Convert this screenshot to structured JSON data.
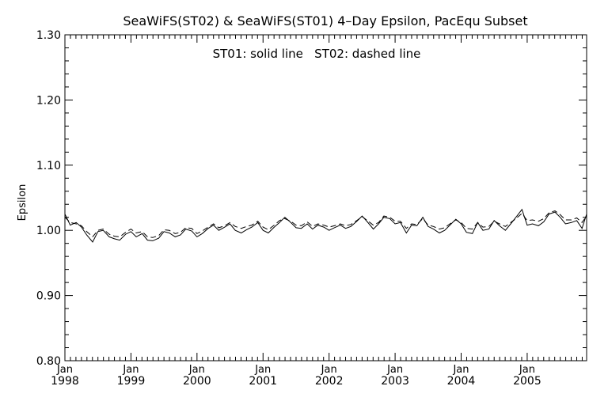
{
  "chart_data": {
    "type": "line",
    "title": "SeaWiFS(ST02) & SeaWiFS(ST01) 4–Day Epsilon, PacEqu Subset",
    "annotation": "ST01: solid line   ST02: dashed line",
    "xlabel": "",
    "ylabel": "Epsilon",
    "xlim": [
      1998.0,
      2005.9
    ],
    "ylim": [
      0.8,
      1.3
    ],
    "grid": false,
    "y_ticks": [
      {
        "value": 0.8,
        "label": "0.80"
      },
      {
        "value": 0.9,
        "label": "0.90"
      },
      {
        "value": 1.0,
        "label": "1.00"
      },
      {
        "value": 1.1,
        "label": "1.10"
      },
      {
        "value": 1.2,
        "label": "1.20"
      },
      {
        "value": 1.3,
        "label": "1.30"
      }
    ],
    "x_ticks": [
      {
        "value": 1998,
        "month": "Jan",
        "year": "1998"
      },
      {
        "value": 1999,
        "month": "Jan",
        "year": "1999"
      },
      {
        "value": 2000,
        "month": "Jan",
        "year": "2000"
      },
      {
        "value": 2001,
        "month": "Jan",
        "year": "2001"
      },
      {
        "value": 2002,
        "month": "Jan",
        "year": "2002"
      },
      {
        "value": 2003,
        "month": "Jan",
        "year": "2003"
      },
      {
        "value": 2004,
        "month": "Jan",
        "year": "2004"
      },
      {
        "value": 2005,
        "month": "Jan",
        "year": "2005"
      }
    ],
    "series": [
      {
        "name": "ST01",
        "style": "solid",
        "color": "#000000",
        "x": [
          1998.0,
          1998.08,
          1998.17,
          1998.25,
          1998.33,
          1998.42,
          1998.5,
          1998.58,
          1998.67,
          1998.75,
          1998.83,
          1998.92,
          1999.0,
          1999.08,
          1999.17,
          1999.25,
          1999.33,
          1999.42,
          1999.5,
          1999.58,
          1999.67,
          1999.75,
          1999.83,
          1999.92,
          2000.0,
          2000.08,
          2000.17,
          2000.25,
          2000.33,
          2000.42,
          2000.5,
          2000.58,
          2000.67,
          2000.75,
          2000.83,
          2000.92,
          2001.0,
          2001.08,
          2001.17,
          2001.25,
          2001.33,
          2001.42,
          2001.5,
          2001.58,
          2001.67,
          2001.75,
          2001.83,
          2001.92,
          2002.0,
          2002.08,
          2002.17,
          2002.25,
          2002.33,
          2002.42,
          2002.5,
          2002.58,
          2002.67,
          2002.75,
          2002.83,
          2002.92,
          2003.0,
          2003.08,
          2003.17,
          2003.25,
          2003.33,
          2003.42,
          2003.5,
          2003.58,
          2003.67,
          2003.75,
          2003.83,
          2003.92,
          2004.0,
          2004.08,
          2004.17,
          2004.25,
          2004.33,
          2004.42,
          2004.5,
          2004.58,
          2004.67,
          2004.75,
          2004.83,
          2004.92,
          2005.0,
          2005.08,
          2005.17,
          2005.25,
          2005.33,
          2005.42,
          2005.5,
          2005.58,
          2005.67,
          2005.75,
          2005.83,
          2005.9
        ],
        "y": [
          1.025,
          1.008,
          1.012,
          1.005,
          0.993,
          0.982,
          0.998,
          1.0,
          0.99,
          0.987,
          0.985,
          0.994,
          0.998,
          0.99,
          0.995,
          0.985,
          0.984,
          0.988,
          0.998,
          0.996,
          0.99,
          0.993,
          1.002,
          0.999,
          0.99,
          0.995,
          1.003,
          1.008,
          1.0,
          1.005,
          1.01,
          1.0,
          0.996,
          1.001,
          1.005,
          1.012,
          1.0,
          0.996,
          1.005,
          1.012,
          1.02,
          1.012,
          1.004,
          1.003,
          1.01,
          1.002,
          1.008,
          1.005,
          1.0,
          1.004,
          1.008,
          1.003,
          1.006,
          1.014,
          1.022,
          1.013,
          1.002,
          1.01,
          1.02,
          1.018,
          1.01,
          1.012,
          0.996,
          1.008,
          1.007,
          1.02,
          1.006,
          1.002,
          0.996,
          1.0,
          1.008,
          1.017,
          1.01,
          0.997,
          0.995,
          1.012,
          1.0,
          1.002,
          1.015,
          1.007,
          1.0,
          1.01,
          1.02,
          1.032,
          1.008,
          1.01,
          1.007,
          1.013,
          1.025,
          1.028,
          1.02,
          1.01,
          1.012,
          1.015,
          1.003,
          1.025
        ]
      },
      {
        "name": "ST02",
        "style": "dashed",
        "color": "#000000",
        "x": [
          1998.0,
          1998.08,
          1998.17,
          1998.25,
          1998.33,
          1998.42,
          1998.5,
          1998.58,
          1998.67,
          1998.75,
          1998.83,
          1998.92,
          1999.0,
          1999.08,
          1999.17,
          1999.25,
          1999.33,
          1999.42,
          1999.5,
          1999.58,
          1999.67,
          1999.75,
          1999.83,
          1999.92,
          2000.0,
          2000.08,
          2000.17,
          2000.25,
          2000.33,
          2000.42,
          2000.5,
          2000.58,
          2000.67,
          2000.75,
          2000.83,
          2000.92,
          2001.0,
          2001.08,
          2001.17,
          2001.25,
          2001.33,
          2001.42,
          2001.5,
          2001.58,
          2001.67,
          2001.75,
          2001.83,
          2001.92,
          2002.0,
          2002.08,
          2002.17,
          2002.25,
          2002.33,
          2002.42,
          2002.5,
          2002.58,
          2002.67,
          2002.75,
          2002.83,
          2002.92,
          2003.0,
          2003.08,
          2003.17,
          2003.25,
          2003.33,
          2003.42,
          2003.5,
          2003.58,
          2003.67,
          2003.75,
          2003.83,
          2003.92,
          2004.0,
          2004.08,
          2004.17,
          2004.25,
          2004.33,
          2004.42,
          2004.5,
          2004.58,
          2004.67,
          2004.75,
          2004.83,
          2004.92,
          2005.0,
          2005.08,
          2005.17,
          2005.25,
          2005.33,
          2005.42,
          2005.5,
          2005.58,
          2005.67,
          2005.75,
          2005.83,
          2005.9
        ],
        "y": [
          1.02,
          1.012,
          1.01,
          1.007,
          0.998,
          0.99,
          1.0,
          1.002,
          0.994,
          0.991,
          0.99,
          0.997,
          1.002,
          0.996,
          0.998,
          0.99,
          0.989,
          0.992,
          1.001,
          1.0,
          0.995,
          0.997,
          1.004,
          1.003,
          0.995,
          0.999,
          1.005,
          1.01,
          1.004,
          1.007,
          1.012,
          1.006,
          1.003,
          1.006,
          1.008,
          1.014,
          1.005,
          1.001,
          1.008,
          1.015,
          1.018,
          1.014,
          1.008,
          1.007,
          1.013,
          1.006,
          1.01,
          1.008,
          1.005,
          1.007,
          1.01,
          1.007,
          1.009,
          1.015,
          1.021,
          1.015,
          1.008,
          1.012,
          1.022,
          1.02,
          1.014,
          1.014,
          1.003,
          1.01,
          1.009,
          1.018,
          1.008,
          1.006,
          1.002,
          1.004,
          1.01,
          1.016,
          1.012,
          1.003,
          1.002,
          1.012,
          1.005,
          1.006,
          1.014,
          1.01,
          1.006,
          1.012,
          1.018,
          1.026,
          1.015,
          1.016,
          1.014,
          1.018,
          1.027,
          1.03,
          1.024,
          1.016,
          1.016,
          1.019,
          1.012,
          1.022
        ]
      }
    ]
  }
}
